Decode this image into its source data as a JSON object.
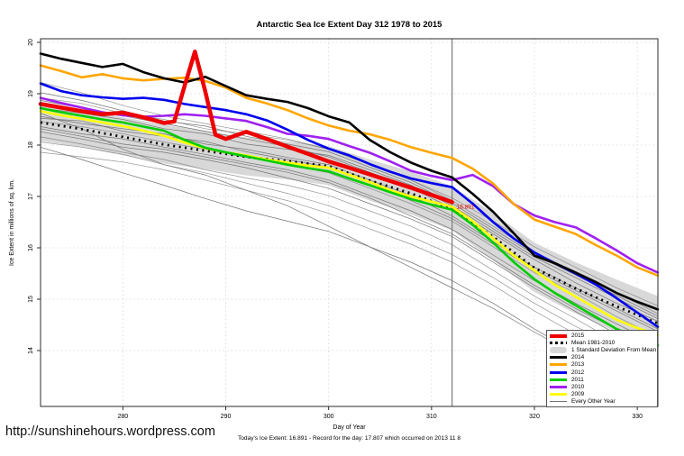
{
  "title": "Antarctic Sea Ice Extent Day 312 1978 to 2015",
  "footer": {
    "url": "http://sunshinehours.wordpress.com",
    "xlabel": "Day of Year",
    "status_line": "Today's Ice Extent: 16.891 - Record for the day: 17.807 which occurred on 2013 11 8"
  },
  "legend": {
    "items": [
      {
        "label": "2015",
        "type": "line",
        "color": "#ee0000",
        "weight": 4
      },
      {
        "label": "Mean 1981-2010",
        "type": "dashed",
        "color": "#000000",
        "weight": 3
      },
      {
        "label": "1 Standard Deviation From Mean",
        "type": "band",
        "color": "#d8d8d8",
        "weight": 7
      },
      {
        "label": "2014",
        "type": "line",
        "color": "#000000",
        "weight": 3
      },
      {
        "label": "2013",
        "type": "line",
        "color": "#ffa500",
        "weight": 3
      },
      {
        "label": "2012",
        "type": "line",
        "color": "#0000ee",
        "weight": 3
      },
      {
        "label": "2011",
        "type": "line",
        "color": "#00cc00",
        "weight": 3
      },
      {
        "label": "2010",
        "type": "line",
        "color": "#a020f0",
        "weight": 3
      },
      {
        "label": "2009",
        "type": "line",
        "color": "#ffff00",
        "weight": 3
      },
      {
        "label": "Every Other Year",
        "type": "line",
        "color": "#737373",
        "weight": 1
      }
    ]
  },
  "chart_data": {
    "type": "line",
    "title": "Antarctic Sea Ice Extent Day 312 1978 to 2015",
    "xlabel": "Day of Year",
    "ylabel": "Ice Extent in millions of sq. km.",
    "x_range": [
      272,
      332
    ],
    "y_range": [
      12.9,
      20.1
    ],
    "x_ticks": [
      280,
      290,
      300,
      310,
      320,
      330
    ],
    "y_ticks": [
      14,
      15,
      16,
      17,
      18,
      19,
      20
    ],
    "grid": "dotted",
    "legend_position": "bottom-right",
    "marker_line_x": 312,
    "annotation": {
      "text": "16.891",
      "x": 312,
      "y": 16.89,
      "color": "#ee0000"
    },
    "days_fine": [
      272,
      274,
      276,
      278,
      280,
      282,
      284,
      286,
      288,
      290,
      292,
      294,
      296,
      298,
      300,
      302,
      304,
      306,
      308,
      310,
      312,
      314,
      316,
      318,
      320,
      322,
      324,
      326,
      328,
      330,
      332
    ],
    "days_coarse": [
      272,
      276,
      280,
      284,
      288,
      292,
      296,
      300,
      304,
      308,
      312,
      316,
      320,
      324,
      328,
      332
    ],
    "band": {
      "name": "1 Standard Deviation From Mean",
      "color": "#d8d8d8",
      "days": "coarse",
      "upper": [
        18.8,
        18.68,
        18.54,
        18.4,
        18.27,
        18.15,
        18.07,
        17.98,
        17.72,
        17.49,
        17.2,
        16.68,
        16.1,
        15.72,
        15.38,
        15.06
      ],
      "lower": [
        18.08,
        17.96,
        17.8,
        17.64,
        17.53,
        17.41,
        17.33,
        17.22,
        16.92,
        16.65,
        16.34,
        15.76,
        15.14,
        14.72,
        14.36,
        14.02
      ]
    },
    "mean": {
      "name": "Mean 1981-2010",
      "color": "#000000",
      "style": "dashed",
      "days": "coarse",
      "values": [
        18.44,
        18.31,
        18.16,
        18.01,
        17.89,
        17.77,
        17.69,
        17.59,
        17.31,
        17.06,
        16.76,
        16.21,
        15.61,
        15.21,
        14.86,
        14.53
      ]
    },
    "series": [
      {
        "name": "2015",
        "color": "#ee0000",
        "width": 4.5,
        "days": [
          272,
          274,
          276,
          278,
          280,
          282,
          284,
          285,
          286,
          287,
          288,
          289,
          290,
          292,
          294,
          296,
          298,
          300,
          302,
          304,
          306,
          308,
          310,
          312
        ],
        "values": [
          18.8,
          18.73,
          18.66,
          18.6,
          18.63,
          18.54,
          18.43,
          18.46,
          19.15,
          19.82,
          19.05,
          18.2,
          18.12,
          18.26,
          18.12,
          17.97,
          17.83,
          17.68,
          17.56,
          17.43,
          17.3,
          17.17,
          17.03,
          16.89
        ]
      },
      {
        "name": "2014",
        "color": "#000000",
        "width": 2.6,
        "days": "fine",
        "values": [
          19.78,
          19.68,
          19.6,
          19.52,
          19.58,
          19.42,
          19.3,
          19.22,
          19.33,
          19.15,
          18.97,
          18.9,
          18.84,
          18.72,
          18.56,
          18.44,
          18.1,
          17.86,
          17.66,
          17.5,
          17.37,
          17.05,
          16.7,
          16.28,
          15.85,
          15.7,
          15.52,
          15.33,
          15.12,
          14.95,
          14.8
        ]
      },
      {
        "name": "2013",
        "color": "#ffa500",
        "width": 2.6,
        "days": "fine",
        "values": [
          19.55,
          19.44,
          19.32,
          19.38,
          19.3,
          19.26,
          19.29,
          19.31,
          19.25,
          19.12,
          18.92,
          18.81,
          18.68,
          18.52,
          18.38,
          18.28,
          18.21,
          18.1,
          17.96,
          17.85,
          17.75,
          17.54,
          17.25,
          16.85,
          16.55,
          16.41,
          16.27,
          16.05,
          15.85,
          15.62,
          15.46
        ]
      },
      {
        "name": "2012",
        "color": "#0000ee",
        "width": 2.6,
        "days": "fine",
        "values": [
          19.2,
          19.05,
          18.97,
          18.93,
          18.9,
          18.92,
          18.88,
          18.8,
          18.74,
          18.68,
          18.6,
          18.48,
          18.3,
          18.1,
          17.93,
          17.8,
          17.63,
          17.48,
          17.35,
          17.26,
          17.18,
          16.86,
          16.5,
          16.18,
          15.91,
          15.7,
          15.5,
          15.28,
          15.02,
          14.74,
          14.46
        ]
      },
      {
        "name": "2011",
        "color": "#00cc00",
        "width": 2.6,
        "days": "fine",
        "values": [
          18.72,
          18.64,
          18.57,
          18.5,
          18.44,
          18.36,
          18.28,
          18.1,
          17.95,
          17.86,
          17.78,
          17.7,
          17.62,
          17.55,
          17.49,
          17.35,
          17.22,
          17.08,
          16.95,
          16.84,
          16.74,
          16.45,
          16.1,
          15.72,
          15.39,
          15.12,
          14.88,
          14.65,
          14.42,
          14.25,
          14.1
        ]
      },
      {
        "name": "2010",
        "color": "#a020f0",
        "width": 2.6,
        "days": "fine",
        "values": [
          18.92,
          18.82,
          18.73,
          18.64,
          18.58,
          18.55,
          18.57,
          18.6,
          18.57,
          18.52,
          18.47,
          18.35,
          18.22,
          18.18,
          18.12,
          17.98,
          17.85,
          17.68,
          17.5,
          17.4,
          17.32,
          17.42,
          17.2,
          16.85,
          16.63,
          16.5,
          16.4,
          16.18,
          15.95,
          15.7,
          15.52
        ]
      },
      {
        "name": "2009",
        "color": "#ffff00",
        "width": 2.6,
        "days": "fine",
        "values": [
          18.66,
          18.58,
          18.51,
          18.44,
          18.37,
          18.28,
          18.18,
          18.05,
          17.94,
          17.86,
          17.8,
          17.72,
          17.66,
          17.6,
          17.56,
          17.42,
          17.28,
          17.12,
          17.0,
          16.9,
          16.8,
          16.52,
          16.18,
          15.85,
          15.56,
          15.28,
          15.05,
          14.82,
          14.6,
          14.44,
          14.3
        ]
      }
    ],
    "background_series_name": "Every Other Year",
    "background_color": "#737373",
    "background_days": "coarse",
    "background_series": [
      [
        18.92,
        18.81,
        18.62,
        18.5,
        18.32,
        18.22,
        18.1,
        17.92,
        17.62,
        17.32,
        16.92,
        16.42,
        15.92,
        15.52,
        15.12,
        14.72
      ],
      [
        18.72,
        18.62,
        18.5,
        18.32,
        18.22,
        18.02,
        17.92,
        17.8,
        17.52,
        17.22,
        16.82,
        16.32,
        15.82,
        15.42,
        15.02,
        14.62
      ],
      [
        18.56,
        18.42,
        18.32,
        18.22,
        18.02,
        17.92,
        17.76,
        17.62,
        17.32,
        17.02,
        16.62,
        16.12,
        15.62,
        15.22,
        14.82,
        14.42
      ],
      [
        18.46,
        18.36,
        18.22,
        18.06,
        17.92,
        17.76,
        17.62,
        17.46,
        17.16,
        16.86,
        16.52,
        16.02,
        15.52,
        15.12,
        14.66,
        14.26
      ],
      [
        18.36,
        18.22,
        18.12,
        17.96,
        17.82,
        17.66,
        17.52,
        17.32,
        17.02,
        16.72,
        16.36,
        15.86,
        15.36,
        14.92,
        14.52,
        14.12
      ],
      [
        18.26,
        18.12,
        17.96,
        17.86,
        17.72,
        17.56,
        17.36,
        17.16,
        16.86,
        16.56,
        16.22,
        15.72,
        15.22,
        14.76,
        14.32,
        13.92
      ],
      [
        18.16,
        18.02,
        17.86,
        17.72,
        17.52,
        17.36,
        17.22,
        17.02,
        16.72,
        16.42,
        16.06,
        15.56,
        15.06,
        14.62,
        14.16,
        13.76
      ],
      [
        17.96,
        17.72,
        17.46,
        17.22,
        16.96,
        16.72,
        16.52,
        16.32,
        16.02,
        15.72,
        15.36,
        14.92,
        14.42,
        13.96,
        13.56,
        13.22
      ],
      [
        18.62,
        18.32,
        17.92,
        17.62,
        17.42,
        17.12,
        16.82,
        16.42,
        16.02,
        15.62,
        15.22,
        14.82,
        14.36,
        13.92,
        13.52,
        13.16
      ],
      [
        19.22,
        19.02,
        18.77,
        18.57,
        18.42,
        18.27,
        18.12,
        17.92,
        17.62,
        17.32,
        16.97,
        16.52,
        16.02,
        15.62,
        15.22,
        14.87
      ],
      [
        18.87,
        18.72,
        18.57,
        18.42,
        18.27,
        18.12,
        17.97,
        17.77,
        17.47,
        17.17,
        16.77,
        16.27,
        15.77,
        15.32,
        14.92,
        14.57
      ],
      [
        18.52,
        18.47,
        18.27,
        18.17,
        18.07,
        17.87,
        17.72,
        17.57,
        17.27,
        16.92,
        16.57,
        16.07,
        15.57,
        15.17,
        14.77,
        14.37
      ],
      [
        18.06,
        17.96,
        17.82,
        17.62,
        17.46,
        17.26,
        17.06,
        16.82,
        16.52,
        16.22,
        15.87,
        15.42,
        14.92,
        14.47,
        14.07,
        13.67
      ],
      [
        18.32,
        18.17,
        18.02,
        17.92,
        17.77,
        17.62,
        17.47,
        17.27,
        16.97,
        16.62,
        16.27,
        15.77,
        15.27,
        14.82,
        14.42,
        14.02
      ],
      [
        19.02,
        18.87,
        18.67,
        18.47,
        18.37,
        18.17,
        18.02,
        17.87,
        17.57,
        17.27,
        16.87,
        16.37,
        15.87,
        15.47,
        15.07,
        14.67
      ],
      [
        17.86,
        17.77,
        17.67,
        17.52,
        17.32,
        17.12,
        16.92,
        16.67,
        16.37,
        16.07,
        15.72,
        15.27,
        14.77,
        14.32,
        13.92,
        13.52
      ]
    ]
  }
}
